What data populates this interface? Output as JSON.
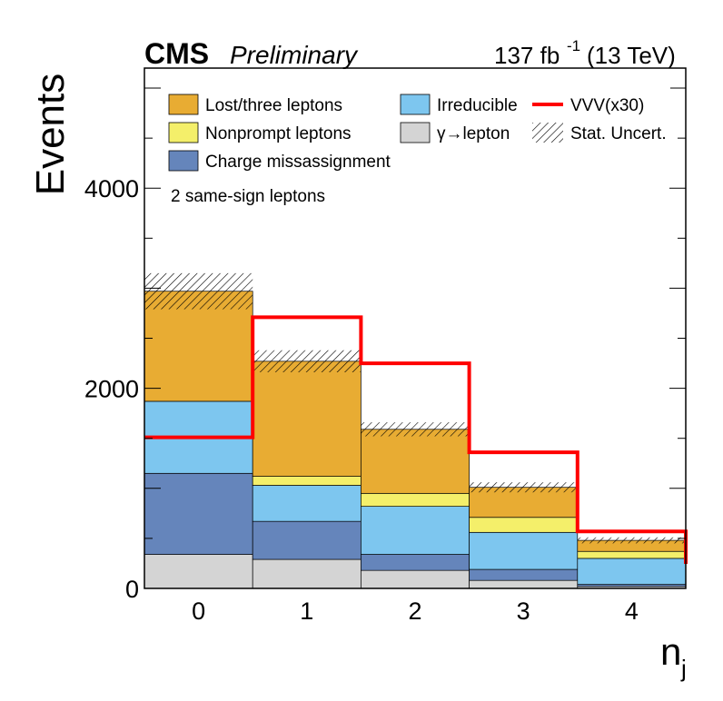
{
  "header": {
    "experiment": "CMS",
    "status": "Preliminary",
    "luminosity": "137 fb",
    "lumi_exponent": "-1",
    "energy": "(13 TeV)"
  },
  "annotation": "2 same-sign leptons",
  "colors": {
    "lost_three_leptons": "#e8ac33",
    "nonprompt_leptons": "#f4ef6a",
    "charge_missassignment": "#6585bb",
    "irreducible": "#7dc6ef",
    "gamma_lepton": "#d4d4d4",
    "vvv_signal": "#ff0000"
  },
  "legend": {
    "lost": "Lost/three leptons",
    "nonprompt": "Nonprompt leptons",
    "charge": "Charge missassignment",
    "irreducible": "Irreducible",
    "gamma": "γ→lepton",
    "vvv": "VVV(x30)",
    "stat": "Stat. Uncert."
  },
  "chart_data": {
    "type": "bar",
    "stacked": true,
    "title": "",
    "xlabel": "n_j",
    "ylabel": "Events",
    "categories": [
      "0",
      "1",
      "2",
      "3",
      "4"
    ],
    "ylim": [
      0,
      5200
    ],
    "yticks": [
      0,
      2000,
      4000
    ],
    "series": [
      {
        "name": "γ→lepton",
        "values": [
          340,
          290,
          180,
          80,
          20
        ]
      },
      {
        "name": "Charge missassignment",
        "values": [
          810,
          380,
          160,
          110,
          20
        ]
      },
      {
        "name": "Irreducible",
        "values": [
          720,
          360,
          480,
          370,
          260
        ]
      },
      {
        "name": "Nonprompt leptons",
        "values": [
          0,
          90,
          130,
          150,
          70
        ]
      },
      {
        "name": "Lost/three leptons",
        "values": [
          1100,
          1150,
          640,
          300,
          110
        ]
      },
      {
        "name": "VVV(x30)",
        "values": [
          1510,
          2710,
          2250,
          1360,
          570
        ]
      }
    ],
    "stat_uncert_up": [
      3150,
      2380,
      1660,
      1060,
      510
    ],
    "grid": false,
    "legend_position": "top"
  }
}
